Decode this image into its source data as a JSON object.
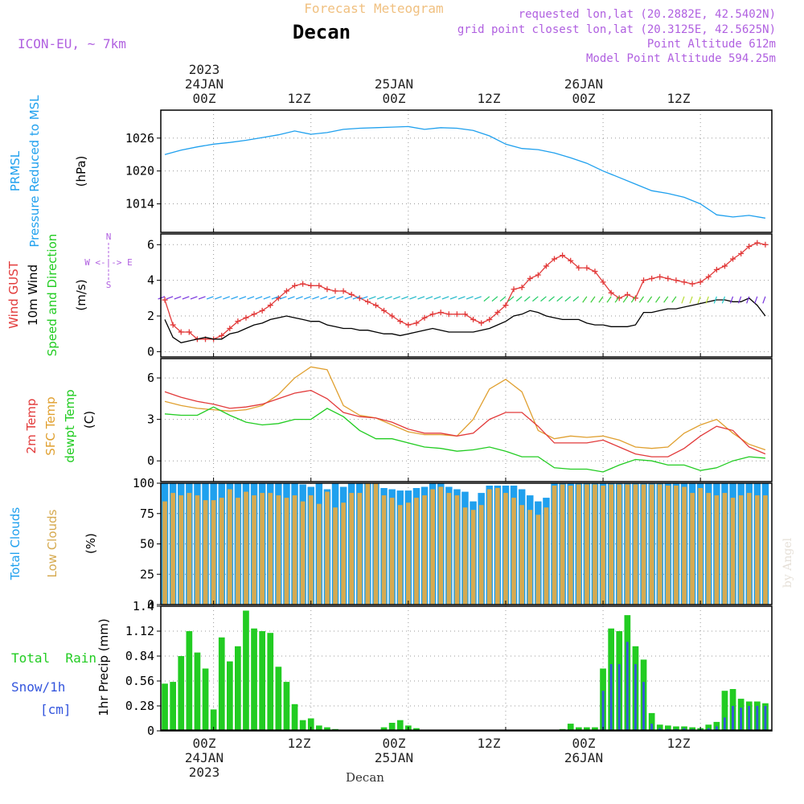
{
  "header": {
    "subtitle": "Forecast Meteogram",
    "title": "Decan",
    "model": "ICON-EU, ~ 7km",
    "requested": "requested lon,lat (20.2882E, 42.5402N)",
    "grid_point": "grid point closest lon,lat (20.3125E, 42.5625N)",
    "point_altitude": "Point Altitude 612m",
    "model_altitude": "Model Point Altitude 594.25m"
  },
  "time_axis": {
    "ticks": [
      "00Z",
      "12Z",
      "00Z",
      "12Z",
      "00Z",
      "12Z"
    ],
    "top_dates": [
      "2023\n24JAN",
      "25JAN",
      "26JAN"
    ],
    "bottom_dates": [
      "24JAN\n2023",
      "25JAN",
      "26JAN"
    ],
    "top_date_lines": {
      "year": "2023",
      "d1": "24JAN",
      "d2": "25JAN",
      "d3": "26JAN"
    },
    "bottom_label": "Decan"
  },
  "panel_labels": {
    "prmsl_1": "PRMSL",
    "prmsl_2": "Pressure Reduced to MSL",
    "prmsl_unit": "(hPa)",
    "wind_gust": "Wind GUST",
    "wind_10m": "10m Wind",
    "wind_dir": "Speed and Direction",
    "wind_unit": "(m/s)",
    "compass_n": "N",
    "compass_s": "S",
    "compass_we": "W <-|-> E",
    "temp_2m": "2m Temp",
    "temp_sfc": "SFC Temp",
    "temp_dew": "dewpt Temp",
    "temp_unit": "(C)",
    "cloud_total": "Total Clouds",
    "cloud_low": "Low Clouds",
    "cloud_unit": "(%)",
    "rain_total": "Total  Rain",
    "rain_snow": "Snow/1h",
    "rain_cm": "[cm]",
    "precip_axis": "1hr Precip (mm)",
    "watermark": "by Angel"
  },
  "colors": {
    "pressure": "#1fa0ee",
    "gust": "#e23a3a",
    "wind": "#000000",
    "temp2m": "#e23a3a",
    "sfc": "#e0a030",
    "dew": "#22cc22",
    "total_cloud": "#1fa0ee",
    "low_cloud": "#d6aa50",
    "rain": "#22cc22",
    "snow": "#3355dd",
    "purple": "#b060e0",
    "title_orange": "#f0c080"
  },
  "chart_data": [
    {
      "type": "line",
      "name": "PRMSL",
      "ylabel": "(hPa)",
      "yticks": [
        1014,
        1020,
        1026
      ],
      "ylim": [
        1008.8,
        1031.1
      ],
      "x_hours": [
        -6,
        -4,
        -2,
        0,
        2,
        4,
        6,
        8,
        10,
        12,
        14,
        16,
        18,
        20,
        22,
        24,
        26,
        28,
        30,
        32,
        34,
        36,
        38,
        40,
        42,
        44,
        46,
        48,
        50,
        52,
        54,
        56,
        58,
        60,
        62,
        64,
        66,
        68
      ],
      "series": [
        {
          "values": [
            1023,
            1023.8,
            1024.4,
            1024.9,
            1025.2,
            1025.6,
            1026.1,
            1026.6,
            1027.3,
            1026.7,
            1027.0,
            1027.6,
            1027.8,
            1027.9,
            1028.0,
            1028.1,
            1027.6,
            1027.9,
            1027.8,
            1027.4,
            1026.4,
            1024.9,
            1024.1,
            1023.9,
            1023.3,
            1022.4,
            1021.4,
            1020.0,
            1018.8,
            1017.6,
            1016.4,
            1015.9,
            1015.2,
            1014.0,
            1012.0,
            1011.6,
            1011.9,
            1011.4
          ]
        }
      ]
    },
    {
      "type": "line",
      "name": "Wind",
      "ylabel": "(m/s)",
      "yticks": [
        0,
        2,
        4,
        6
      ],
      "ylim": [
        -0.3,
        6.6
      ],
      "x_hours": [
        -6,
        -5,
        -4,
        -3,
        -2,
        -1,
        0,
        1,
        2,
        3,
        4,
        5,
        6,
        7,
        8,
        9,
        10,
        11,
        12,
        13,
        14,
        15,
        16,
        17,
        18,
        19,
        20,
        21,
        22,
        23,
        24,
        25,
        26,
        27,
        28,
        29,
        30,
        31,
        32,
        33,
        34,
        35,
        36,
        37,
        38,
        39,
        40,
        41,
        42,
        43,
        44,
        45,
        46,
        47,
        48,
        49,
        50,
        51,
        52,
        53,
        54,
        55,
        56,
        57,
        58,
        59,
        60,
        61,
        62,
        63,
        64,
        65,
        66,
        67,
        68
      ],
      "series": [
        {
          "values": [
            2.9,
            1.5,
            1.1,
            1.1,
            0.7,
            0.7,
            0.7,
            0.9,
            1.3,
            1.7,
            1.9,
            2.1,
            2.3,
            2.6,
            3.0,
            3.4,
            3.7,
            3.8,
            3.7,
            3.7,
            3.5,
            3.4,
            3.4,
            3.2,
            3.0,
            2.8,
            2.6,
            2.3,
            2.0,
            1.7,
            1.5,
            1.6,
            1.9,
            2.1,
            2.2,
            2.1,
            2.1,
            2.1,
            1.8,
            1.6,
            1.8,
            2.2,
            2.6,
            3.5,
            3.6,
            4.1,
            4.3,
            4.8,
            5.2,
            5.4,
            5.1,
            4.7,
            4.7,
            4.5,
            3.9,
            3.3,
            3.0,
            3.2,
            3.0,
            4.0,
            4.1,
            4.2,
            4.1,
            4.0,
            3.9,
            3.8,
            3.9,
            4.2,
            4.6,
            4.8,
            5.2,
            5.5,
            5.9,
            6.1,
            6.0
          ]
        },
        {
          "values": [
            1.8,
            0.8,
            0.5,
            0.6,
            0.7,
            0.8,
            0.7,
            0.7,
            1.0,
            1.1,
            1.3,
            1.5,
            1.6,
            1.8,
            1.9,
            2.0,
            1.9,
            1.8,
            1.7,
            1.7,
            1.5,
            1.4,
            1.3,
            1.3,
            1.2,
            1.2,
            1.1,
            1.0,
            1.0,
            0.9,
            1.0,
            1.1,
            1.2,
            1.3,
            1.2,
            1.1,
            1.1,
            1.1,
            1.1,
            1.2,
            1.3,
            1.5,
            1.7,
            2.0,
            2.1,
            2.3,
            2.2,
            2.0,
            1.9,
            1.8,
            1.8,
            1.8,
            1.6,
            1.5,
            1.5,
            1.4,
            1.4,
            1.4,
            1.5,
            2.2,
            2.2,
            2.3,
            2.4,
            2.4,
            2.5,
            2.6,
            2.7,
            2.8,
            2.9,
            2.9,
            2.8,
            2.8,
            3.0,
            2.6,
            2.0
          ]
        }
      ]
    },
    {
      "type": "line",
      "name": "Temperature",
      "ylabel": "(C)",
      "yticks": [
        0,
        3,
        6
      ],
      "ylim": [
        -1.5,
        7.4
      ],
      "x_hours": [
        -6,
        -4,
        -2,
        0,
        2,
        4,
        6,
        8,
        10,
        12,
        14,
        16,
        18,
        20,
        22,
        24,
        26,
        28,
        30,
        32,
        34,
        36,
        38,
        40,
        42,
        44,
        46,
        48,
        50,
        52,
        54,
        56,
        58,
        60,
        62,
        64,
        66,
        68
      ],
      "series": [
        {
          "values": [
            5.0,
            4.6,
            4.3,
            4.1,
            3.8,
            3.9,
            4.1,
            4.5,
            4.9,
            5.1,
            4.5,
            3.5,
            3.2,
            3.1,
            2.8,
            2.3,
            2.0,
            2.0,
            1.8,
            2.0,
            3.0,
            3.5,
            3.5,
            2.5,
            1.3,
            1.3,
            1.3,
            1.5,
            1.0,
            0.5,
            0.3,
            0.3,
            0.9,
            1.8,
            2.5,
            2.2,
            1.0,
            0.5
          ]
        },
        {
          "values": [
            4.3,
            4.0,
            3.8,
            3.7,
            3.6,
            3.7,
            4.0,
            4.8,
            6.0,
            6.8,
            6.6,
            4.0,
            3.3,
            3.1,
            2.6,
            2.1,
            1.9,
            1.9,
            1.8,
            3.0,
            5.2,
            5.9,
            5.0,
            2.2,
            1.6,
            1.8,
            1.7,
            1.8,
            1.5,
            1.0,
            0.9,
            1.0,
            2.0,
            2.6,
            3.0,
            2.0,
            1.2,
            0.8
          ]
        },
        {
          "values": [
            3.4,
            3.3,
            3.3,
            3.9,
            3.3,
            2.8,
            2.6,
            2.7,
            3.0,
            3.0,
            3.8,
            3.2,
            2.2,
            1.6,
            1.6,
            1.3,
            1.0,
            0.9,
            0.7,
            0.8,
            1.0,
            0.7,
            0.3,
            0.3,
            -0.5,
            -0.6,
            -0.6,
            -0.8,
            -0.3,
            0.1,
            0.0,
            -0.3,
            -0.3,
            -0.7,
            -0.5,
            0.0,
            0.3,
            0.2
          ]
        }
      ]
    },
    {
      "type": "bar",
      "name": "Clouds",
      "ylabel": "(%)",
      "yticks": [
        0,
        25,
        50,
        75,
        100
      ],
      "ylim": [
        0,
        100
      ],
      "x_hours": [
        -6,
        -5,
        -4,
        -3,
        -2,
        -1,
        0,
        1,
        2,
        3,
        4,
        5,
        6,
        7,
        8,
        9,
        10,
        11,
        12,
        13,
        14,
        15,
        16,
        17,
        18,
        19,
        20,
        21,
        22,
        23,
        24,
        25,
        26,
        27,
        28,
        29,
        30,
        31,
        32,
        33,
        34,
        35,
        36,
        37,
        38,
        39,
        40,
        41,
        42,
        43,
        44,
        45,
        46,
        47,
        48,
        49,
        50,
        51,
        52,
        53,
        54,
        55,
        56,
        57,
        58,
        59,
        60,
        61,
        62,
        63,
        64,
        65,
        66,
        67,
        68
      ],
      "series": [
        {
          "name": "Total Clouds",
          "values": [
            100,
            100,
            100,
            100,
            100,
            100,
            100,
            100,
            100,
            100,
            100,
            100,
            100,
            100,
            100,
            100,
            100,
            99,
            97,
            100,
            95,
            100,
            97,
            100,
            100,
            100,
            100,
            96,
            95,
            94,
            94,
            96,
            97,
            100,
            100,
            97,
            95,
            93,
            85,
            92,
            98,
            98,
            98,
            98,
            95,
            90,
            85,
            88,
            100,
            100,
            100,
            100,
            100,
            100,
            100,
            100,
            100,
            100,
            100,
            100,
            100,
            100,
            100,
            100,
            100,
            100,
            100,
            100,
            100,
            100,
            100,
            100,
            100,
            100,
            100
          ]
        },
        {
          "name": "Low Clouds",
          "values": [
            85,
            92,
            90,
            92,
            90,
            86,
            86,
            88,
            95,
            88,
            93,
            90,
            92,
            92,
            90,
            88,
            90,
            85,
            90,
            83,
            93,
            80,
            84,
            92,
            92,
            100,
            100,
            90,
            88,
            82,
            84,
            88,
            90,
            95,
            97,
            92,
            90,
            80,
            78,
            82,
            95,
            96,
            92,
            88,
            82,
            78,
            74,
            80,
            98,
            99,
            98,
            99,
            99,
            99,
            98,
            99,
            99,
            99,
            99,
            99,
            99,
            99,
            98,
            98,
            97,
            92,
            96,
            92,
            90,
            92,
            88,
            90,
            92,
            90,
            90
          ]
        }
      ]
    },
    {
      "type": "bar",
      "name": "Precipitation",
      "ylabel": "1hr Precip (mm)",
      "yticks": [
        0,
        0.28,
        0.56,
        0.84,
        1.12,
        1.4
      ],
      "ylim": [
        0,
        1.4
      ],
      "x_hours": [
        -6,
        -5,
        -4,
        -3,
        -2,
        -1,
        0,
        1,
        2,
        3,
        4,
        5,
        6,
        7,
        8,
        9,
        10,
        11,
        12,
        13,
        14,
        15,
        16,
        17,
        18,
        19,
        20,
        21,
        22,
        23,
        24,
        25,
        26,
        27,
        28,
        29,
        30,
        31,
        32,
        33,
        34,
        35,
        36,
        37,
        38,
        39,
        40,
        41,
        42,
        43,
        44,
        45,
        46,
        47,
        48,
        49,
        50,
        51,
        52,
        53,
        54,
        55,
        56,
        57,
        58,
        59,
        60,
        61,
        62,
        63,
        64,
        65,
        66,
        67,
        68
      ],
      "series": [
        {
          "name": "Total Rain",
          "values": [
            0.53,
            0.55,
            0.84,
            1.12,
            0.88,
            0.7,
            0.24,
            1.05,
            0.78,
            0.95,
            1.35,
            1.15,
            1.12,
            1.1,
            0.72,
            0.55,
            0.3,
            0.12,
            0.14,
            0.06,
            0.04,
            0.02,
            0,
            0,
            0,
            0,
            0.01,
            0.04,
            0.09,
            0.12,
            0.06,
            0.03,
            0.01,
            0,
            0,
            0,
            0,
            0,
            0,
            0,
            0,
            0,
            0,
            0.01,
            0,
            0,
            0,
            0,
            0,
            0.02,
            0.08,
            0.04,
            0.04,
            0.04,
            0.7,
            1.15,
            1.12,
            1.3,
            0.95,
            0.8,
            0.2,
            0.07,
            0.06,
            0.05,
            0.05,
            0.04,
            0.03,
            0.07,
            0.1,
            0.45,
            0.47,
            0.36,
            0.33,
            0.33,
            0.31
          ]
        },
        {
          "name": "Snow/1h",
          "values": [
            0,
            0,
            0,
            0,
            0,
            0,
            0,
            0,
            0,
            0,
            0,
            0,
            0,
            0,
            0,
            0,
            0,
            0,
            0,
            0,
            0,
            0,
            0,
            0,
            0,
            0,
            0,
            0,
            0,
            0,
            0,
            0,
            0,
            0,
            0,
            0,
            0,
            0,
            0,
            0,
            0,
            0,
            0,
            0,
            0,
            0,
            0,
            0,
            0,
            0,
            0,
            0,
            0,
            0,
            0.45,
            0.75,
            0.75,
            1.0,
            0.75,
            0.55,
            0.08,
            0.03,
            0.02,
            0.02,
            0.03,
            0.02,
            0.02,
            0.03,
            0.05,
            0.15,
            0.28,
            0.26,
            0.28,
            0.28,
            0.28
          ]
        }
      ]
    }
  ]
}
